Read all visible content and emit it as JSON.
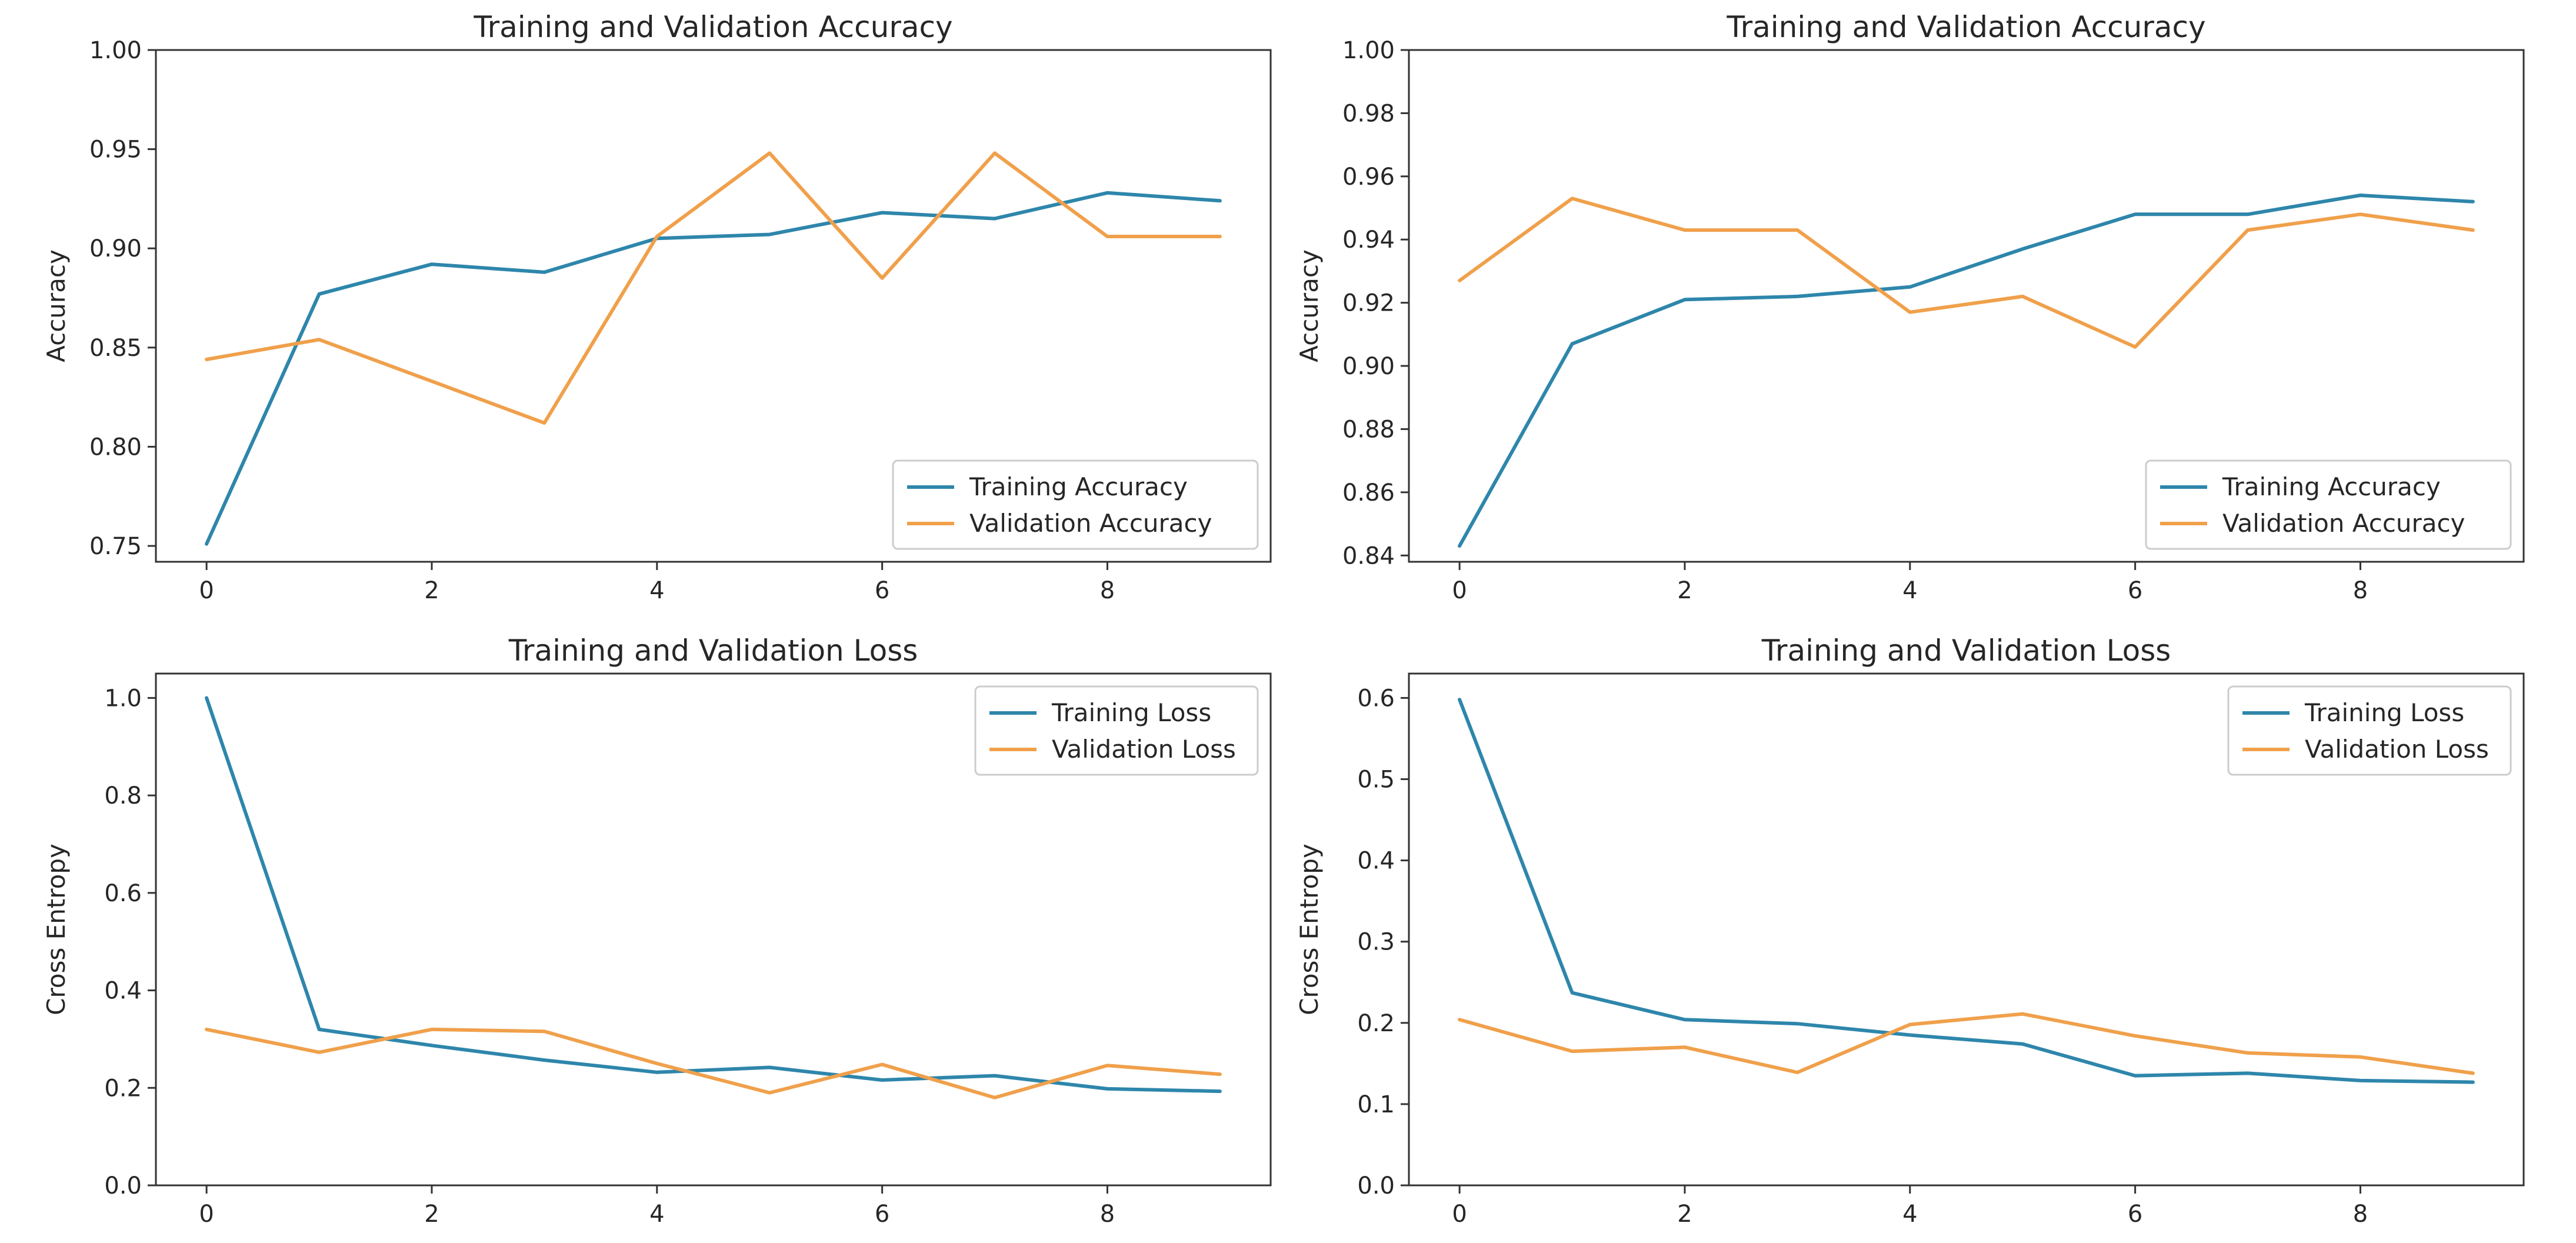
{
  "figure": {
    "background": "#ffffff"
  },
  "colors": {
    "training": "#2e86ab",
    "validation": "#f0a04b",
    "frame": "#333333",
    "text": "#262626",
    "legend_border": "#cccccc"
  },
  "chart_data": [
    {
      "type": "line",
      "title": "Training and Validation Accuracy",
      "xlabel": "",
      "ylabel": "Accuracy",
      "xlim": [
        -0.45,
        9.45
      ],
      "ylim": [
        0.742,
        1.0
      ],
      "xticks": [
        0,
        2,
        4,
        6,
        8
      ],
      "xtick_labels": [
        "0",
        "2",
        "4",
        "6",
        "8"
      ],
      "yticks": [
        0.75,
        0.8,
        0.85,
        0.9,
        0.95,
        1.0
      ],
      "ytick_labels": [
        "0.75",
        "0.80",
        "0.85",
        "0.90",
        "0.95",
        "1.00"
      ],
      "grid": false,
      "legend_position": "lower-right",
      "x": [
        0,
        1,
        2,
        3,
        4,
        5,
        6,
        7,
        8,
        9
      ],
      "series": [
        {
          "name": "Training Accuracy",
          "color": "#2e86ab",
          "values": [
            0.751,
            0.877,
            0.892,
            0.888,
            0.905,
            0.907,
            0.918,
            0.915,
            0.928,
            0.924
          ]
        },
        {
          "name": "Validation Accuracy",
          "color": "#f0a04b",
          "values": [
            0.844,
            0.854,
            0.833,
            0.812,
            0.906,
            0.948,
            0.885,
            0.948,
            0.906,
            0.906
          ]
        }
      ]
    },
    {
      "type": "line",
      "title": "Training and Validation Accuracy",
      "xlabel": "",
      "ylabel": "Accuracy",
      "xlim": [
        -0.45,
        9.45
      ],
      "ylim": [
        0.838,
        1.0
      ],
      "xticks": [
        0,
        2,
        4,
        6,
        8
      ],
      "xtick_labels": [
        "0",
        "2",
        "4",
        "6",
        "8"
      ],
      "yticks": [
        0.84,
        0.86,
        0.88,
        0.9,
        0.92,
        0.94,
        0.96,
        0.98,
        1.0
      ],
      "ytick_labels": [
        "0.84",
        "0.86",
        "0.88",
        "0.90",
        "0.92",
        "0.94",
        "0.96",
        "0.98",
        "1.00"
      ],
      "grid": false,
      "legend_position": "lower-right",
      "x": [
        0,
        1,
        2,
        3,
        4,
        5,
        6,
        7,
        8,
        9
      ],
      "series": [
        {
          "name": "Training Accuracy",
          "color": "#2e86ab",
          "values": [
            0.843,
            0.907,
            0.921,
            0.922,
            0.925,
            0.937,
            0.948,
            0.948,
            0.954,
            0.952
          ]
        },
        {
          "name": "Validation Accuracy",
          "color": "#f0a04b",
          "values": [
            0.927,
            0.953,
            0.943,
            0.943,
            0.917,
            0.922,
            0.906,
            0.943,
            0.948,
            0.943
          ]
        }
      ]
    },
    {
      "type": "line",
      "title": "Training and Validation Loss",
      "xlabel": "",
      "ylabel": "Cross Entropy",
      "xlim": [
        -0.45,
        9.45
      ],
      "ylim": [
        0.0,
        1.05
      ],
      "xticks": [
        0,
        2,
        4,
        6,
        8
      ],
      "xtick_labels": [
        "0",
        "2",
        "4",
        "6",
        "8"
      ],
      "yticks": [
        0.0,
        0.2,
        0.4,
        0.6,
        0.8,
        1.0
      ],
      "ytick_labels": [
        "0.0",
        "0.2",
        "0.4",
        "0.6",
        "0.8",
        "1.0"
      ],
      "grid": false,
      "legend_position": "upper-right",
      "x": [
        0,
        1,
        2,
        3,
        4,
        5,
        6,
        7,
        8,
        9
      ],
      "series": [
        {
          "name": "Training Loss",
          "color": "#2e86ab",
          "values": [
            1.0,
            0.32,
            0.287,
            0.257,
            0.232,
            0.242,
            0.216,
            0.225,
            0.198,
            0.193
          ]
        },
        {
          "name": "Validation Loss",
          "color": "#f0a04b",
          "values": [
            0.32,
            0.273,
            0.32,
            0.316,
            0.25,
            0.19,
            0.248,
            0.18,
            0.246,
            0.228
          ]
        }
      ]
    },
    {
      "type": "line",
      "title": "Training and Validation Loss",
      "xlabel": "",
      "ylabel": "Cross Entropy",
      "xlim": [
        -0.45,
        9.45
      ],
      "ylim": [
        0.0,
        0.63
      ],
      "xticks": [
        0,
        2,
        4,
        6,
        8
      ],
      "xtick_labels": [
        "0",
        "2",
        "4",
        "6",
        "8"
      ],
      "yticks": [
        0.0,
        0.1,
        0.2,
        0.3,
        0.4,
        0.5,
        0.6
      ],
      "ytick_labels": [
        "0.0",
        "0.1",
        "0.2",
        "0.3",
        "0.4",
        "0.5",
        "0.6"
      ],
      "grid": false,
      "legend_position": "upper-right",
      "x": [
        0,
        1,
        2,
        3,
        4,
        5,
        6,
        7,
        8,
        9
      ],
      "series": [
        {
          "name": "Training Loss",
          "color": "#2e86ab",
          "values": [
            0.598,
            0.237,
            0.204,
            0.199,
            0.185,
            0.174,
            0.135,
            0.138,
            0.129,
            0.127
          ]
        },
        {
          "name": "Validation Loss",
          "color": "#f0a04b",
          "values": [
            0.204,
            0.165,
            0.17,
            0.139,
            0.198,
            0.211,
            0.184,
            0.163,
            0.158,
            0.138
          ]
        }
      ]
    }
  ]
}
